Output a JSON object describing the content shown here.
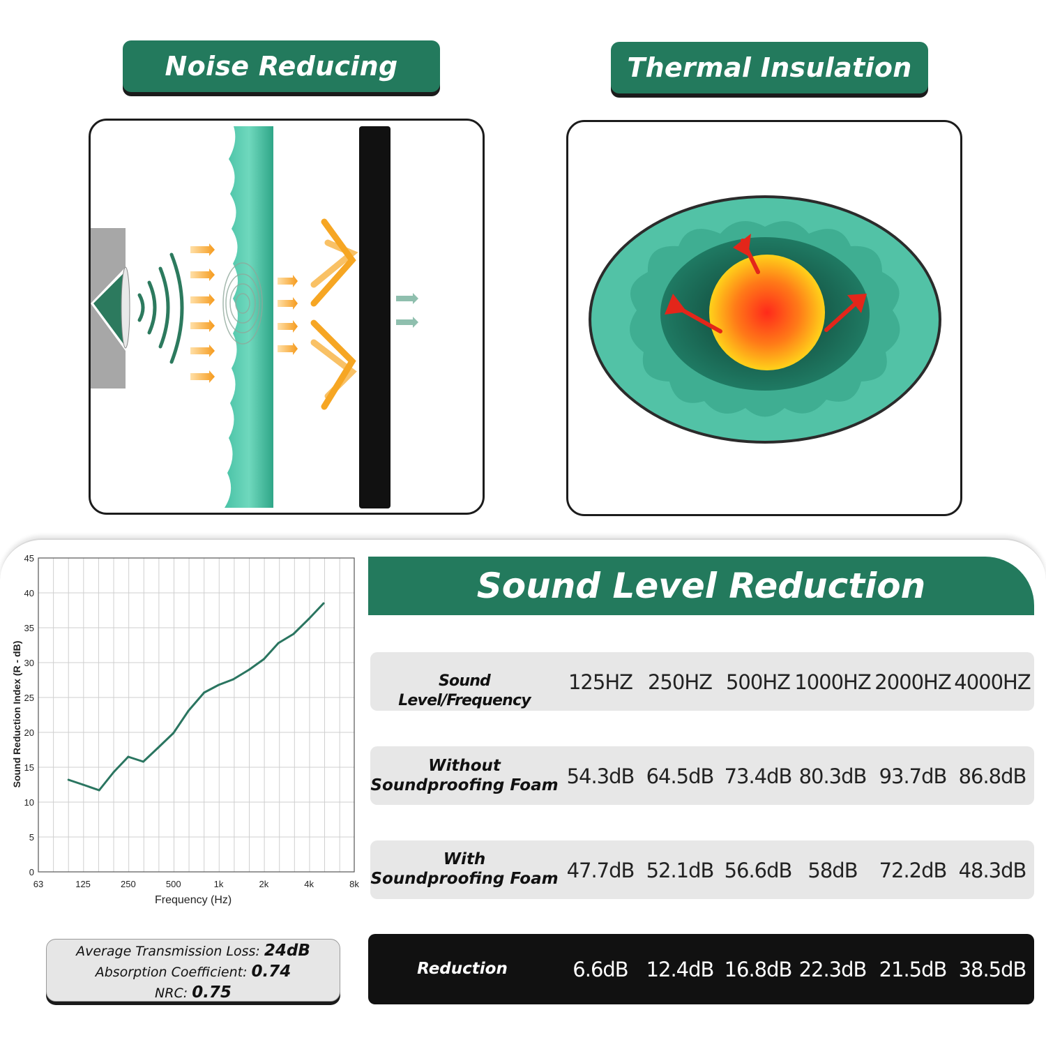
{
  "panels": {
    "noise_title": "Noise Reducing",
    "thermal_title": "Thermal Insulation"
  },
  "stats": {
    "atl_label": "Average Transmission Loss:",
    "atl_value": "24dB",
    "abs_label": "Absorption Coefficient:",
    "abs_value": "0.74",
    "nrc_label": "NRC:",
    "nrc_value": "0.75"
  },
  "table": {
    "title": "Sound Level Reduction",
    "header_label": "Sound Level/Frequency",
    "frequencies": [
      "125HZ",
      "250HZ",
      "500HZ",
      "1000HZ",
      "2000HZ",
      "4000HZ"
    ],
    "rows": [
      {
        "label_line1": "Without",
        "label_line2": "Soundproofing Foam",
        "values": [
          "54.3dB",
          "64.5dB",
          "73.4dB",
          "80.3dB",
          "93.7dB",
          "86.8dB"
        ]
      },
      {
        "label_line1": "With",
        "label_line2": "Soundproofing Foam",
        "values": [
          "47.7dB",
          "52.1dB",
          "56.6dB",
          "58dB",
          "72.2dB",
          "48.3dB"
        ]
      }
    ],
    "reduction_label": "Reduction",
    "reduction_values": [
      "6.6dB",
      "12.4dB",
      "16.8dB",
      "22.3dB",
      "21.5dB",
      "38.5dB"
    ]
  },
  "chart_data": {
    "type": "line",
    "xlabel": "Frequency (Hz)",
    "ylabel": "Sound Reduction Index (R - dB)",
    "x_scale": "log",
    "x_ticks": [
      63,
      125,
      250,
      500,
      1000,
      2000,
      4000,
      8000
    ],
    "x_tick_labels": [
      "63",
      "125",
      "250",
      "500",
      "1k",
      "2k",
      "4k",
      "8k"
    ],
    "ylim": [
      0,
      45
    ],
    "y_ticks": [
      0,
      5,
      10,
      15,
      20,
      25,
      30,
      35,
      40,
      45
    ],
    "grid": true,
    "series_color": "#2a7560",
    "series": [
      {
        "x": [
          100,
          125,
          160,
          200,
          250,
          315,
          400,
          500,
          630,
          800,
          1000,
          1250,
          1600,
          2000,
          2500,
          3150,
          4000,
          5000
        ],
        "values": [
          13.2,
          12.5,
          11.7,
          14.3,
          16.5,
          15.8,
          17.9,
          19.9,
          23.1,
          25.7,
          26.8,
          27.6,
          29.0,
          30.5,
          32.8,
          34.1,
          36.3,
          38.5
        ]
      }
    ]
  }
}
